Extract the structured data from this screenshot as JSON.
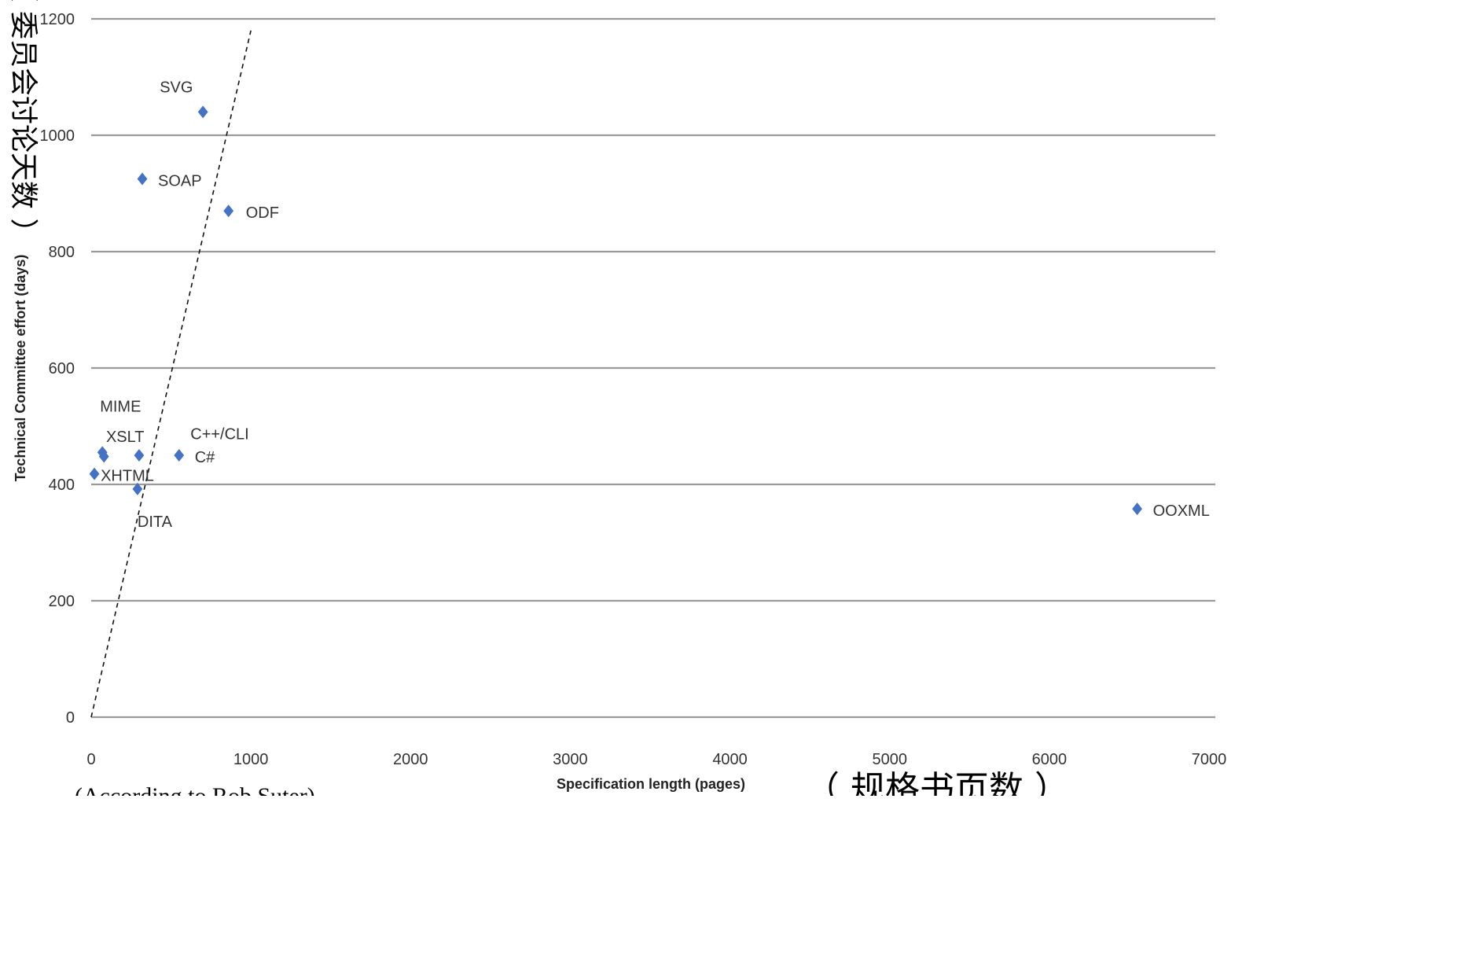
{
  "chart_data": {
    "type": "scatter",
    "xlabel": "Specification length (pages)",
    "ylabel": "Technical Committee effort (days)",
    "xlabel_cjk": "（ 规格书页数 ）",
    "ylabel_cjk": "（ 委员会讨论天数 ）",
    "source_note": "(According to Rob Suter)",
    "xlim": [
      0,
      7000
    ],
    "ylim": [
      0,
      1200
    ],
    "x_ticks": [
      0,
      1000,
      2000,
      3000,
      4000,
      5000,
      6000,
      7000
    ],
    "y_ticks": [
      0,
      200,
      400,
      600,
      800,
      1000,
      1200
    ],
    "grid": "horizontal",
    "marker_color": "#4472C4",
    "points": [
      {
        "label": "SVG",
        "x": 700,
        "y": 1040
      },
      {
        "label": "SOAP",
        "x": 320,
        "y": 925
      },
      {
        "label": "ODF",
        "x": 860,
        "y": 870
      },
      {
        "label": "MIME",
        "x": 70,
        "y": 455
      },
      {
        "label": "XSLT",
        "x": 300,
        "y": 450
      },
      {
        "label": "C++/CLI",
        "x": 80,
        "y": 448
      },
      {
        "label": "C#",
        "x": 550,
        "y": 450
      },
      {
        "label": "XHTML",
        "x": 20,
        "y": 418
      },
      {
        "label": "DITA",
        "x": 290,
        "y": 392
      },
      {
        "label": "OOXML",
        "x": 6550,
        "y": 358
      }
    ],
    "trend_line": {
      "style": "dashed",
      "from": {
        "x": 0,
        "y": 0
      },
      "to": {
        "x": 1000,
        "y": 1180
      }
    }
  }
}
